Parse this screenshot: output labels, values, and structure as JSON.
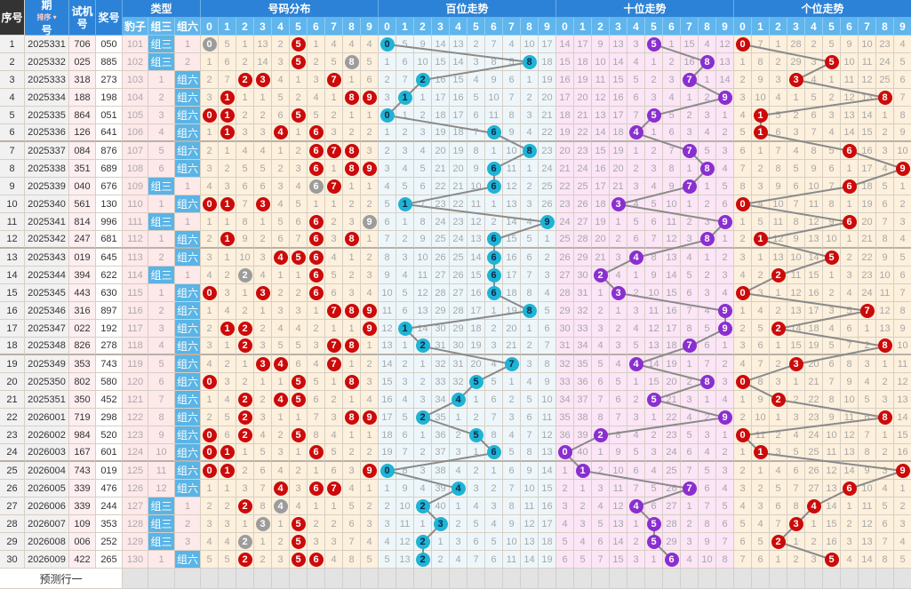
{
  "header": {
    "seq": "序号",
    "issue_top": "期",
    "issue_bottom": "号",
    "sort": "排序",
    "test_top": "试机",
    "test_bottom": "号",
    "prize": "奖号",
    "type_group": "类型",
    "types": [
      "豹子",
      "组三",
      "组六"
    ],
    "sections": [
      "号码分布",
      "百位走势",
      "十位走势",
      "个位走势"
    ],
    "digits": [
      "0",
      "1",
      "2",
      "3",
      "4",
      "5",
      "6",
      "7",
      "8",
      "9"
    ]
  },
  "rows": [
    {
      "seq": "1",
      "issue": "2025331",
      "test": "706",
      "prize": "050"
    },
    {
      "seq": "2",
      "issue": "2025332",
      "test": "025",
      "prize": "885"
    },
    {
      "seq": "3",
      "issue": "2025333",
      "test": "318",
      "prize": "273"
    },
    {
      "seq": "4",
      "issue": "2025334",
      "test": "188",
      "prize": "198"
    },
    {
      "seq": "5",
      "issue": "2025335",
      "test": "864",
      "prize": "051"
    },
    {
      "seq": "6",
      "issue": "2025336",
      "test": "126",
      "prize": "641"
    },
    {
      "seq": "7",
      "issue": "2025337",
      "test": "084",
      "prize": "876"
    },
    {
      "seq": "8",
      "issue": "2025338",
      "test": "351",
      "prize": "689"
    },
    {
      "seq": "9",
      "issue": "2025339",
      "test": "040",
      "prize": "676"
    },
    {
      "seq": "10",
      "issue": "2025340",
      "test": "561",
      "prize": "130"
    },
    {
      "seq": "11",
      "issue": "2025341",
      "test": "814",
      "prize": "996"
    },
    {
      "seq": "12",
      "issue": "2025342",
      "test": "247",
      "prize": "681"
    },
    {
      "seq": "13",
      "issue": "2025343",
      "test": "019",
      "prize": "645"
    },
    {
      "seq": "14",
      "issue": "2025344",
      "test": "394",
      "prize": "622"
    },
    {
      "seq": "15",
      "issue": "2025345",
      "test": "443",
      "prize": "630"
    },
    {
      "seq": "16",
      "issue": "2025346",
      "test": "316",
      "prize": "897"
    },
    {
      "seq": "17",
      "issue": "2025347",
      "test": "022",
      "prize": "192"
    },
    {
      "seq": "18",
      "issue": "2025348",
      "test": "826",
      "prize": "278"
    },
    {
      "seq": "19",
      "issue": "2025349",
      "test": "353",
      "prize": "743"
    },
    {
      "seq": "20",
      "issue": "2025350",
      "test": "802",
      "prize": "580"
    },
    {
      "seq": "21",
      "issue": "2025351",
      "test": "350",
      "prize": "452"
    },
    {
      "seq": "22",
      "issue": "2026001",
      "test": "719",
      "prize": "298"
    },
    {
      "seq": "23",
      "issue": "2026002",
      "test": "984",
      "prize": "520"
    },
    {
      "seq": "24",
      "issue": "2026003",
      "test": "167",
      "prize": "601"
    },
    {
      "seq": "25",
      "issue": "2026004",
      "test": "743",
      "prize": "019"
    },
    {
      "seq": "26",
      "issue": "2026005",
      "test": "339",
      "prize": "476"
    },
    {
      "seq": "27",
      "issue": "2026006",
      "test": "339",
      "prize": "244"
    },
    {
      "seq": "28",
      "issue": "2026007",
      "test": "109",
      "prize": "353"
    },
    {
      "seq": "29",
      "issue": "2026008",
      "test": "006",
      "prize": "252"
    },
    {
      "seq": "30",
      "issue": "2026009",
      "test": "422",
      "prize": "265"
    }
  ],
  "first_row_omissions": {
    "type": [
      101,
      null,
      1
    ],
    "dist": [
      null,
      5,
      1,
      13,
      2,
      null,
      1,
      4,
      4,
      4
    ],
    "hundreds": [
      null,
      5,
      9,
      14,
      13,
      2,
      7,
      4,
      10,
      17
    ],
    "tens": [
      14,
      17,
      9,
      13,
      3,
      null,
      1,
      15,
      4,
      12
    ],
    "units": [
      null,
      7,
      1,
      28,
      2,
      5,
      9,
      10,
      23,
      4
    ]
  },
  "predict_label": "预测行一",
  "colors": {
    "header": "#2c82d6",
    "subheader": "#5fb5ec",
    "dist_hit": "#cc0a0a",
    "dist_pair": "#9c9c9c",
    "hundreds_hit": "#1fb3d4",
    "tens_hit": "#8a2fcf",
    "units_hit": "#cc0a0a",
    "trend_line": "#8a8a8a"
  }
}
